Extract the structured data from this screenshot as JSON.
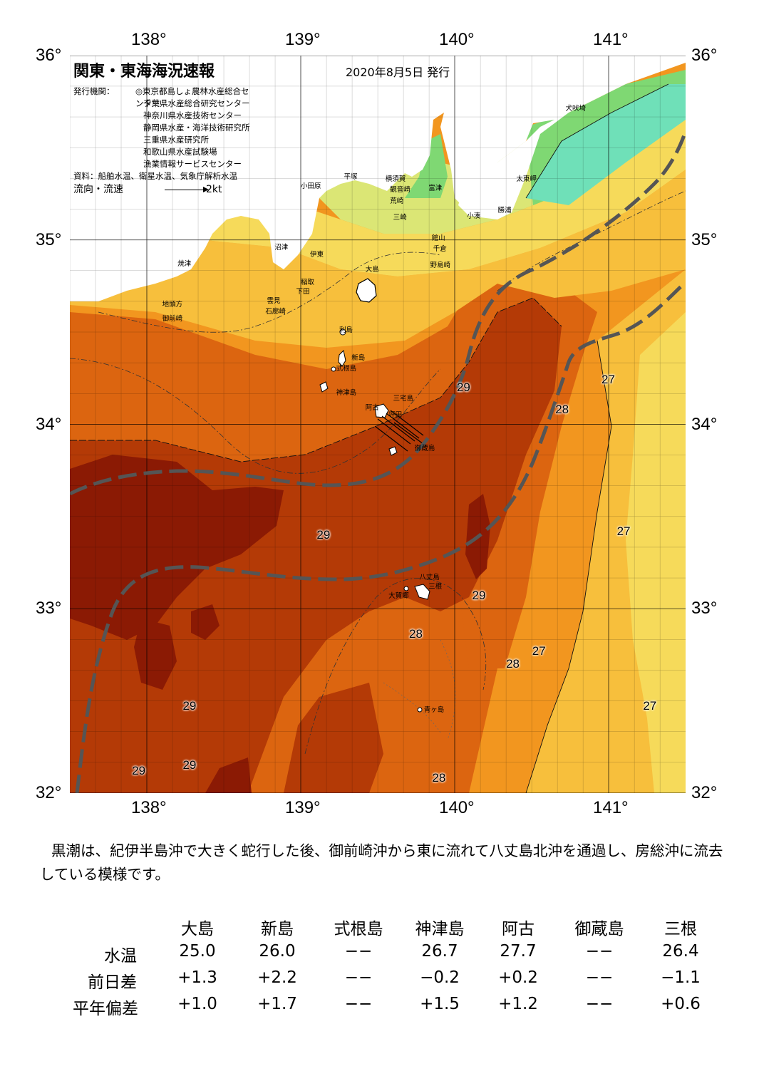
{
  "map": {
    "title": "関東・東海海況速報",
    "date": "2020年8月5日 発行",
    "agency_label": "発行機関：",
    "agencies": [
      "◎東京都島しょ農林水産総合センター",
      "千葉県水産総合研究センター",
      "神奈川県水産技術センター",
      "静岡県水産・海洋技術研究所",
      "三重県水産研究所",
      "和歌山県水産試験場",
      "漁業情報サービスセンター"
    ],
    "source": "資料：船舶水温、衛星水温、気象庁解析水温",
    "flow_label": "流向・流速",
    "flow_scale": "2kt",
    "lon_labels": [
      "138°",
      "139°",
      "140°",
      "141°"
    ],
    "lat_labels": [
      "36°",
      "35°",
      "34°",
      "33°",
      "32°"
    ],
    "lon_ticks": [
      138,
      139,
      140,
      141
    ],
    "lat_ticks": [
      36,
      35,
      34,
      33,
      32
    ],
    "extent": {
      "lon_min": 137.5,
      "lon_max": 141.5,
      "lat_min": 32,
      "lat_max": 36
    },
    "colors": {
      "deep": "#8b1a04",
      "hot": "#b43a06",
      "warm": "#dc6510",
      "mid": "#f2961f",
      "light": "#f7bf3c",
      "pale": "#f6da5a",
      "yellowgreen": "#dbe675",
      "green": "#7fd873",
      "cyan": "#6fe0b8",
      "land": "#ffffff",
      "kuroshio": "#555555"
    },
    "places": [
      {
        "name": "犬吠埼",
        "lon": 140.72,
        "lat": 35.72
      },
      {
        "name": "太東岬",
        "lon": 140.4,
        "lat": 35.34
      },
      {
        "name": "勝浦",
        "lon": 140.28,
        "lat": 35.17
      },
      {
        "name": "小湊",
        "lon": 140.08,
        "lat": 35.14
      },
      {
        "name": "富津",
        "lon": 139.83,
        "lat": 35.29
      },
      {
        "name": "横須賀",
        "lon": 139.55,
        "lat": 35.34
      },
      {
        "name": "観音崎",
        "lon": 139.58,
        "lat": 35.28
      },
      {
        "name": "荒崎",
        "lon": 139.58,
        "lat": 35.22
      },
      {
        "name": "三崎",
        "lon": 139.6,
        "lat": 35.13
      },
      {
        "name": "平塚",
        "lon": 139.28,
        "lat": 35.35
      },
      {
        "name": "小田原",
        "lon": 139.0,
        "lat": 35.3
      },
      {
        "name": "館山",
        "lon": 139.85,
        "lat": 35.02
      },
      {
        "name": "千倉",
        "lon": 139.86,
        "lat": 34.96
      },
      {
        "name": "野島崎",
        "lon": 139.84,
        "lat": 34.87
      },
      {
        "name": "沼津",
        "lon": 138.83,
        "lat": 34.97
      },
      {
        "name": "伊東",
        "lon": 139.06,
        "lat": 34.93
      },
      {
        "name": "焼津",
        "lon": 138.2,
        "lat": 34.88
      },
      {
        "name": "稲取",
        "lon": 139.0,
        "lat": 34.78
      },
      {
        "name": "下田",
        "lon": 138.97,
        "lat": 34.73
      },
      {
        "name": "雲見",
        "lon": 138.78,
        "lat": 34.68
      },
      {
        "name": "石廊崎",
        "lon": 138.77,
        "lat": 34.62
      },
      {
        "name": "地頭方",
        "lon": 138.1,
        "lat": 34.66
      },
      {
        "name": "御前崎",
        "lon": 138.1,
        "lat": 34.58
      },
      {
        "name": "大島",
        "lon": 139.42,
        "lat": 34.85
      },
      {
        "name": "利島",
        "lon": 139.25,
        "lat": 34.52
      },
      {
        "name": "新島",
        "lon": 139.33,
        "lat": 34.37
      },
      {
        "name": "式根島",
        "lon": 139.23,
        "lat": 34.31
      },
      {
        "name": "神津島",
        "lon": 139.23,
        "lat": 34.18
      },
      {
        "name": "三宅島",
        "lon": 139.6,
        "lat": 34.15
      },
      {
        "name": "阿古",
        "lon": 139.42,
        "lat": 34.1
      },
      {
        "name": "坪田",
        "lon": 139.57,
        "lat": 34.06
      },
      {
        "name": "御蔵島",
        "lon": 139.74,
        "lat": 33.88
      },
      {
        "name": "八丈島",
        "lon": 139.77,
        "lat": 33.18
      },
      {
        "name": "三根",
        "lon": 139.83,
        "lat": 33.13
      },
      {
        "name": "大賀郷",
        "lon": 139.57,
        "lat": 33.08
      },
      {
        "name": "青ヶ島",
        "lon": 139.8,
        "lat": 32.46
      }
    ],
    "temperature_labels": [
      {
        "value": "29",
        "lon": 140.06,
        "lat": 34.2
      },
      {
        "value": "27",
        "lon": 141.0,
        "lat": 34.24
      },
      {
        "value": "28",
        "lon": 140.7,
        "lat": 34.08
      },
      {
        "value": "29",
        "lon": 139.15,
        "lat": 33.4
      },
      {
        "value": "27",
        "lon": 141.1,
        "lat": 33.42
      },
      {
        "value": "29",
        "lon": 140.16,
        "lat": 33.07
      },
      {
        "value": "28",
        "lon": 139.75,
        "lat": 32.86
      },
      {
        "value": "27",
        "lon": 140.55,
        "lat": 32.77
      },
      {
        "value": "28",
        "lon": 140.38,
        "lat": 32.7
      },
      {
        "value": "29",
        "lon": 138.28,
        "lat": 32.47
      },
      {
        "value": "27",
        "lon": 141.27,
        "lat": 32.47
      },
      {
        "value": "29",
        "lon": 137.95,
        "lat": 32.12
      },
      {
        "value": "29",
        "lon": 138.28,
        "lat": 32.15
      },
      {
        "value": "28",
        "lon": 139.9,
        "lat": 32.08
      }
    ]
  },
  "summary": "黒潮は、紀伊半島沖で大きく蛇行した後、御前崎沖から東に流れて八丈島北沖を通過し、房総沖に流去している模様です。",
  "table": {
    "columns": [
      "大島",
      "新島",
      "式根島",
      "神津島",
      "阿古",
      "御蔵島",
      "三根"
    ],
    "rows": [
      {
        "label": "水温",
        "values": [
          "25.0",
          "26.0",
          "−−",
          "26.7",
          "27.7",
          "−−",
          "26.4"
        ]
      },
      {
        "label": "前日差",
        "values": [
          "+1.3",
          "+2.2",
          "−−",
          "−0.2",
          "+0.2",
          "−−",
          "−1.1"
        ]
      },
      {
        "label": "平年偏差",
        "values": [
          "+1.0",
          "+1.7",
          "−−",
          "+1.5",
          "+1.2",
          "−−",
          "+0.6"
        ]
      }
    ]
  }
}
